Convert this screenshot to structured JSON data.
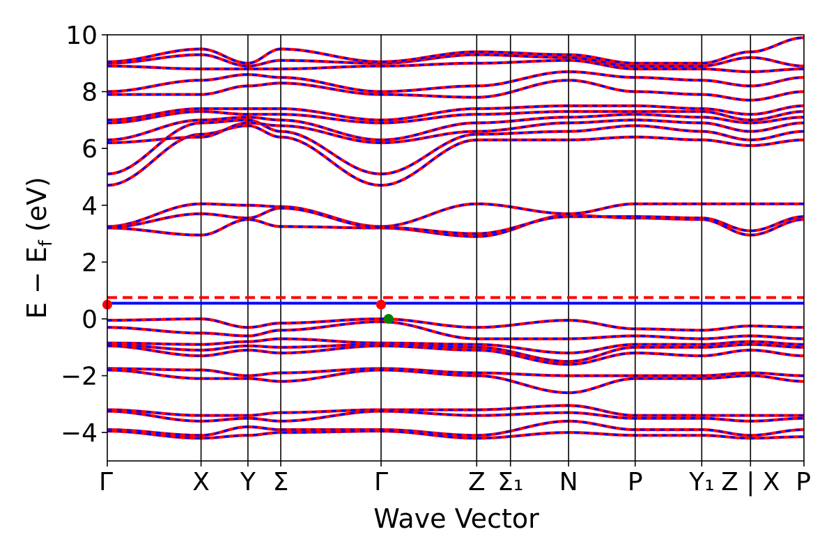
{
  "chart_data": {
    "type": "line",
    "title": "",
    "xlabel": "Wave Vector",
    "ylabel": "E − E",
    "ylabel_sub": "f",
    "ylabel_unit": "(eV)",
    "ylim": [
      -5,
      10
    ],
    "yticks": [
      {
        "value": -4,
        "label": "−4"
      },
      {
        "value": -2,
        "label": "−2"
      },
      {
        "value": 0,
        "label": "0"
      },
      {
        "value": 2,
        "label": "2"
      },
      {
        "value": 4,
        "label": "4"
      },
      {
        "value": 6,
        "label": "6"
      },
      {
        "value": 8,
        "label": "8"
      },
      {
        "value": 10,
        "label": "10"
      }
    ],
    "xlim": [
      0,
      7.43
    ],
    "kpoints": [
      {
        "pos": 0.0,
        "label": "Γ"
      },
      {
        "pos": 1.0,
        "label": "X"
      },
      {
        "pos": 1.5,
        "label": "Y"
      },
      {
        "pos": 1.85,
        "label": "Σ"
      },
      {
        "pos": 2.92,
        "label": "Γ"
      },
      {
        "pos": 3.94,
        "label": "Z"
      },
      {
        "pos": 4.3,
        "label": "Σ₁"
      },
      {
        "pos": 4.92,
        "label": "N"
      },
      {
        "pos": 5.63,
        "label": "P"
      },
      {
        "pos": 6.34,
        "label": "Y₁"
      },
      {
        "pos": 6.86,
        "label": "Z | X"
      },
      {
        "pos": 7.43,
        "label": "P"
      }
    ],
    "grid": false,
    "reference_lines": [
      {
        "name": "spin-up Fermi level",
        "y": 0.55,
        "color": "#0000ff",
        "style": "solid"
      },
      {
        "name": "spin-down Fermi level",
        "y": 0.75,
        "color": "#ff0000",
        "style": "dashed"
      }
    ],
    "markers": [
      {
        "name": "VBM",
        "x": 3.0,
        "y": 0.0,
        "color": "#008000"
      },
      {
        "name": "CBM",
        "x": 2.92,
        "y": 0.5,
        "color": "#ff0000"
      },
      {
        "name": "CBM-edge",
        "x": 0.0,
        "y": 0.5,
        "color": "#ff0000"
      }
    ],
    "colors": {
      "spin_up": "#0000ff",
      "spin_down": "#ff0000"
    },
    "series": [
      {
        "values": [
          [
            0,
            3.2
          ],
          [
            1,
            2.95
          ],
          [
            1.5,
            3.5
          ],
          [
            1.85,
            3.25
          ],
          [
            2.92,
            3.2
          ],
          [
            3.94,
            2.9
          ],
          [
            4.92,
            3.65
          ],
          [
            5.63,
            3.55
          ],
          [
            6.34,
            3.5
          ],
          [
            6.86,
            2.95
          ],
          [
            7.43,
            3.5
          ]
        ]
      },
      {
        "values": [
          [
            0,
            3.25
          ],
          [
            1,
            4.05
          ],
          [
            1.5,
            4.0
          ],
          [
            1.85,
            3.95
          ],
          [
            2.92,
            3.25
          ],
          [
            3.94,
            4.05
          ],
          [
            4.92,
            3.7
          ],
          [
            5.63,
            4.05
          ],
          [
            6.34,
            4.05
          ],
          [
            6.86,
            4.05
          ],
          [
            7.43,
            4.05
          ]
        ]
      },
      {
        "values": [
          [
            0,
            3.22
          ],
          [
            1,
            3.7
          ],
          [
            1.5,
            3.55
          ],
          [
            1.85,
            3.9
          ],
          [
            2.92,
            3.22
          ],
          [
            3.94,
            3.0
          ],
          [
            4.92,
            3.6
          ],
          [
            5.63,
            3.6
          ],
          [
            6.34,
            3.55
          ],
          [
            6.86,
            3.1
          ],
          [
            7.43,
            3.6
          ]
        ]
      },
      {
        "values": [
          [
            0,
            4.7
          ],
          [
            1,
            6.5
          ],
          [
            1.5,
            6.8
          ],
          [
            1.85,
            6.4
          ],
          [
            2.92,
            4.7
          ],
          [
            3.94,
            6.3
          ],
          [
            4.92,
            6.3
          ],
          [
            5.63,
            6.4
          ],
          [
            6.34,
            6.3
          ],
          [
            6.86,
            6.1
          ],
          [
            7.43,
            6.3
          ]
        ]
      },
      {
        "values": [
          [
            0,
            5.1
          ],
          [
            1,
            6.9
          ],
          [
            1.5,
            7.0
          ],
          [
            1.85,
            6.6
          ],
          [
            2.92,
            5.1
          ],
          [
            3.94,
            6.5
          ],
          [
            4.92,
            6.6
          ],
          [
            5.63,
            6.8
          ],
          [
            6.34,
            6.6
          ],
          [
            6.86,
            6.3
          ],
          [
            7.43,
            6.6
          ]
        ]
      },
      {
        "values": [
          [
            0,
            6.2
          ],
          [
            1,
            6.4
          ],
          [
            1.5,
            6.9
          ],
          [
            1.85,
            6.8
          ],
          [
            2.92,
            6.2
          ],
          [
            3.94,
            6.6
          ],
          [
            4.92,
            6.9
          ],
          [
            5.63,
            7.0
          ],
          [
            6.34,
            6.9
          ],
          [
            6.86,
            6.6
          ],
          [
            7.43,
            6.9
          ]
        ]
      },
      {
        "values": [
          [
            0,
            6.3
          ],
          [
            1,
            7.0
          ],
          [
            1.5,
            7.1
          ],
          [
            1.85,
            7.0
          ],
          [
            2.92,
            6.3
          ],
          [
            3.94,
            6.9
          ],
          [
            4.92,
            7.1
          ],
          [
            5.63,
            7.2
          ],
          [
            6.34,
            7.1
          ],
          [
            6.86,
            6.9
          ],
          [
            7.43,
            7.1
          ]
        ]
      },
      {
        "values": [
          [
            0,
            6.9
          ],
          [
            1,
            7.3
          ],
          [
            1.5,
            7.2
          ],
          [
            1.85,
            7.2
          ],
          [
            2.92,
            6.9
          ],
          [
            3.94,
            7.2
          ],
          [
            4.92,
            7.3
          ],
          [
            5.63,
            7.3
          ],
          [
            6.34,
            7.3
          ],
          [
            6.86,
            7.0
          ],
          [
            7.43,
            7.3
          ]
        ]
      },
      {
        "values": [
          [
            0,
            7.0
          ],
          [
            1,
            7.4
          ],
          [
            1.5,
            7.4
          ],
          [
            1.85,
            7.4
          ],
          [
            2.92,
            7.0
          ],
          [
            3.94,
            7.4
          ],
          [
            4.92,
            7.5
          ],
          [
            5.63,
            7.5
          ],
          [
            6.34,
            7.4
          ],
          [
            6.86,
            7.2
          ],
          [
            7.43,
            7.5
          ]
        ]
      },
      {
        "values": [
          [
            0,
            7.9
          ],
          [
            1,
            7.9
          ],
          [
            1.5,
            8.2
          ],
          [
            1.85,
            8.3
          ],
          [
            2.92,
            7.9
          ],
          [
            3.94,
            7.8
          ],
          [
            4.92,
            8.4
          ],
          [
            5.63,
            8.0
          ],
          [
            6.34,
            7.9
          ],
          [
            6.86,
            7.7
          ],
          [
            7.43,
            8.0
          ]
        ]
      },
      {
        "values": [
          [
            0,
            8.0
          ],
          [
            1,
            8.4
          ],
          [
            1.5,
            8.6
          ],
          [
            1.85,
            8.5
          ],
          [
            2.92,
            8.0
          ],
          [
            3.94,
            8.2
          ],
          [
            4.92,
            8.7
          ],
          [
            5.63,
            8.5
          ],
          [
            6.34,
            8.4
          ],
          [
            6.86,
            8.2
          ],
          [
            7.43,
            8.5
          ]
        ]
      },
      {
        "values": [
          [
            0,
            8.9
          ],
          [
            1,
            8.8
          ],
          [
            1.5,
            8.8
          ],
          [
            1.85,
            8.8
          ],
          [
            2.92,
            8.9
          ],
          [
            3.94,
            9.0
          ],
          [
            4.92,
            9.1
          ],
          [
            5.63,
            8.8
          ],
          [
            6.34,
            8.8
          ],
          [
            6.86,
            8.7
          ],
          [
            7.43,
            8.8
          ]
        ]
      },
      {
        "values": [
          [
            0,
            9.0
          ],
          [
            1,
            9.3
          ],
          [
            1.5,
            8.9
          ],
          [
            1.85,
            9.1
          ],
          [
            2.92,
            9.0
          ],
          [
            3.94,
            9.3
          ],
          [
            4.92,
            9.2
          ],
          [
            5.63,
            8.9
          ],
          [
            6.34,
            8.9
          ],
          [
            6.86,
            9.2
          ],
          [
            7.43,
            8.9
          ]
        ]
      },
      {
        "values": [
          [
            0,
            9.05
          ],
          [
            1,
            9.5
          ],
          [
            1.5,
            9.0
          ],
          [
            1.85,
            9.5
          ],
          [
            2.92,
            9.05
          ],
          [
            3.94,
            9.4
          ],
          [
            4.92,
            9.3
          ],
          [
            5.63,
            9.0
          ],
          [
            6.34,
            9.0
          ],
          [
            6.86,
            9.4
          ],
          [
            7.43,
            9.9
          ]
        ]
      },
      {
        "values": [
          [
            0,
            -0.05
          ],
          [
            1,
            0.0
          ],
          [
            1.5,
            -0.3
          ],
          [
            1.85,
            -0.15
          ],
          [
            2.92,
            0.0
          ],
          [
            3.94,
            -0.3
          ],
          [
            4.92,
            -0.05
          ],
          [
            5.63,
            -0.35
          ],
          [
            6.34,
            -0.4
          ],
          [
            6.86,
            -0.25
          ],
          [
            7.43,
            -0.3
          ]
        ]
      },
      {
        "values": [
          [
            0,
            -0.3
          ],
          [
            1,
            -0.5
          ],
          [
            1.5,
            -0.6
          ],
          [
            1.85,
            -0.4
          ],
          [
            2.92,
            -0.1
          ],
          [
            3.94,
            -0.7
          ],
          [
            4.92,
            -0.7
          ],
          [
            5.63,
            -0.6
          ],
          [
            6.34,
            -0.7
          ],
          [
            6.86,
            -0.6
          ],
          [
            7.43,
            -0.7
          ]
        ]
      },
      {
        "values": [
          [
            0,
            -0.85
          ],
          [
            1,
            -0.9
          ],
          [
            1.5,
            -0.8
          ],
          [
            1.85,
            -0.7
          ],
          [
            2.92,
            -0.85
          ],
          [
            3.94,
            -0.9
          ],
          [
            4.92,
            -1.2
          ],
          [
            5.63,
            -0.9
          ],
          [
            6.34,
            -0.9
          ],
          [
            6.86,
            -0.8
          ],
          [
            7.43,
            -0.9
          ]
        ]
      },
      {
        "values": [
          [
            0,
            -0.9
          ],
          [
            1,
            -1.1
          ],
          [
            1.5,
            -0.95
          ],
          [
            1.85,
            -1.0
          ],
          [
            2.92,
            -0.9
          ],
          [
            3.94,
            -1.0
          ],
          [
            4.92,
            -1.5
          ],
          [
            5.63,
            -1.0
          ],
          [
            6.34,
            -1.0
          ],
          [
            6.86,
            -0.9
          ],
          [
            7.43,
            -1.0
          ]
        ]
      },
      {
        "values": [
          [
            0,
            -0.95
          ],
          [
            1,
            -1.3
          ],
          [
            1.5,
            -1.1
          ],
          [
            1.85,
            -1.2
          ],
          [
            2.92,
            -0.95
          ],
          [
            3.94,
            -1.1
          ],
          [
            4.92,
            -1.6
          ],
          [
            5.63,
            -1.2
          ],
          [
            6.34,
            -1.3
          ],
          [
            6.86,
            -1.1
          ],
          [
            7.43,
            -1.3
          ]
        ]
      },
      {
        "values": [
          [
            0,
            -1.75
          ],
          [
            1,
            -1.8
          ],
          [
            1.5,
            -2.0
          ],
          [
            1.85,
            -1.9
          ],
          [
            2.92,
            -1.75
          ],
          [
            3.94,
            -1.9
          ],
          [
            4.92,
            -2.0
          ],
          [
            5.63,
            -2.0
          ],
          [
            6.34,
            -2.0
          ],
          [
            6.86,
            -1.9
          ],
          [
            7.43,
            -2.0
          ]
        ]
      },
      {
        "values": [
          [
            0,
            -1.8
          ],
          [
            1,
            -2.1
          ],
          [
            1.5,
            -2.1
          ],
          [
            1.85,
            -2.2
          ],
          [
            2.92,
            -1.8
          ],
          [
            3.94,
            -2.0
          ],
          [
            4.92,
            -2.6
          ],
          [
            5.63,
            -2.1
          ],
          [
            6.34,
            -2.1
          ],
          [
            6.86,
            -2.0
          ],
          [
            7.43,
            -2.2
          ]
        ]
      },
      {
        "values": [
          [
            0,
            -3.2
          ],
          [
            1,
            -3.4
          ],
          [
            1.5,
            -3.4
          ],
          [
            1.85,
            -3.3
          ],
          [
            2.92,
            -3.2
          ],
          [
            3.94,
            -3.2
          ],
          [
            4.92,
            -3.05
          ],
          [
            5.63,
            -3.4
          ],
          [
            6.34,
            -3.4
          ],
          [
            6.86,
            -3.4
          ],
          [
            7.43,
            -3.4
          ]
        ]
      },
      {
        "values": [
          [
            0,
            -3.25
          ],
          [
            1,
            -3.6
          ],
          [
            1.5,
            -3.5
          ],
          [
            1.85,
            -3.6
          ],
          [
            2.92,
            -3.25
          ],
          [
            3.94,
            -3.4
          ],
          [
            4.92,
            -3.3
          ],
          [
            5.63,
            -3.5
          ],
          [
            6.34,
            -3.5
          ],
          [
            6.86,
            -3.6
          ],
          [
            7.43,
            -3.5
          ]
        ]
      },
      {
        "values": [
          [
            0,
            -3.9
          ],
          [
            1,
            -4.1
          ],
          [
            1.5,
            -3.8
          ],
          [
            1.85,
            -3.9
          ],
          [
            2.92,
            -3.9
          ],
          [
            3.94,
            -4.1
          ],
          [
            4.92,
            -3.6
          ],
          [
            5.63,
            -3.9
          ],
          [
            6.34,
            -3.9
          ],
          [
            6.86,
            -4.1
          ],
          [
            7.43,
            -3.9
          ]
        ]
      },
      {
        "values": [
          [
            0,
            -3.95
          ],
          [
            1,
            -4.2
          ],
          [
            1.5,
            -4.1
          ],
          [
            1.85,
            -4.0
          ],
          [
            2.92,
            -3.95
          ],
          [
            3.94,
            -4.2
          ],
          [
            4.92,
            -4.0
          ],
          [
            5.63,
            -4.1
          ],
          [
            6.34,
            -4.1
          ],
          [
            6.86,
            -4.2
          ],
          [
            7.43,
            -4.15
          ]
        ]
      }
    ]
  }
}
